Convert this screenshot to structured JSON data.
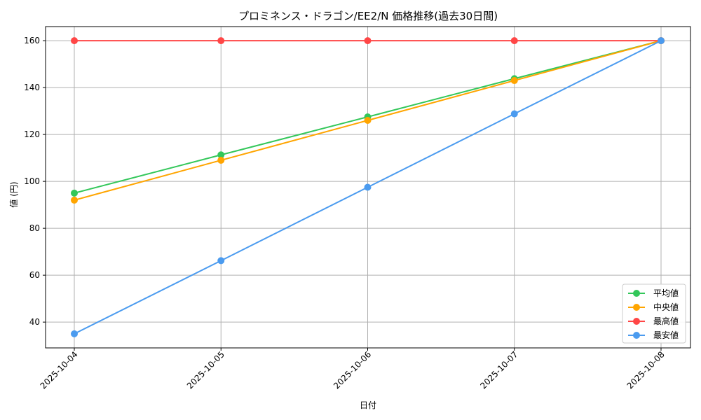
{
  "chart_data": {
    "type": "line",
    "title": "プロミネンス・ドラゴン/EE2/N 価格推移(過去30日間)",
    "xlabel": "日付",
    "ylabel": "値 (円)",
    "categories": [
      "2025-10-04",
      "2025-10-05",
      "2025-10-06",
      "2025-10-07",
      "2025-10-08"
    ],
    "ylim": [
      29,
      166
    ],
    "yticks": [
      40,
      60,
      80,
      100,
      120,
      140,
      160
    ],
    "grid": true,
    "legend_position": "bottom-right",
    "series": [
      {
        "name": "平均値",
        "color": "#33c75a",
        "values": [
          95,
          111.3,
          127.5,
          143.8,
          160
        ]
      },
      {
        "name": "中央値",
        "color": "#ffa500",
        "values": [
          92,
          109,
          126,
          143,
          160
        ]
      },
      {
        "name": "最高値",
        "color": "#ff4646",
        "values": [
          160,
          160,
          160,
          160,
          160
        ]
      },
      {
        "name": "最安値",
        "color": "#4b9bef",
        "values": [
          35,
          66.2,
          97.5,
          128.8,
          160
        ]
      }
    ]
  }
}
